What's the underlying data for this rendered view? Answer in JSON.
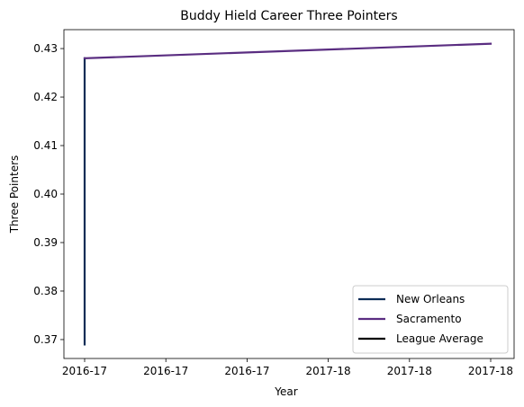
{
  "chart_data": {
    "type": "line",
    "title": "Buddy Hield Career Three Pointers",
    "xlabel": "Year",
    "ylabel": "Three Pointers",
    "x_ticks": [
      "2016-17",
      "2016-17",
      "2016-17",
      "2017-18",
      "2017-18",
      "2017-18"
    ],
    "y_ticks": [
      "0.37",
      "0.38",
      "0.39",
      "0.40",
      "0.41",
      "0.42",
      "0.43"
    ],
    "xlim": [
      0,
      1
    ],
    "ylim": [
      0.3661,
      0.4339
    ],
    "grid": false,
    "legend_position": "lower-right",
    "series": [
      {
        "name": "New Orleans",
        "color": "#0c2c56",
        "points": [
          [
            0,
            0.369
          ],
          [
            0,
            0.428
          ]
        ]
      },
      {
        "name": "Sacramento",
        "color": "#5a2d81",
        "points": [
          [
            0,
            0.428
          ],
          [
            1,
            0.431
          ]
        ]
      },
      {
        "name": "League Average",
        "color": "#000000",
        "points": []
      }
    ]
  }
}
